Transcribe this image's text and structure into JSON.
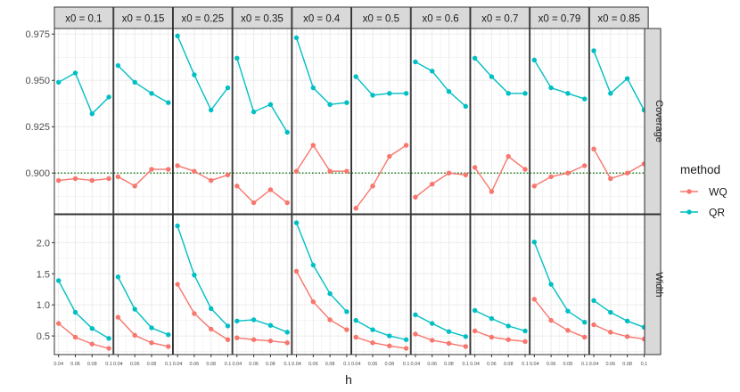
{
  "chart_data": {
    "type": "line",
    "facets": [
      "x0 = 0.1",
      "x0 = 0.15",
      "x0 = 0.25",
      "x0 = 0.35",
      "x0 = 0.4",
      "x0 = 0.5",
      "x0 = 0.6",
      "x0 = 0.7",
      "x0 = 0.79",
      "x0 = 0.85"
    ],
    "rows": [
      "Coverage",
      "Width"
    ],
    "x": [
      0.04,
      0.06,
      0.08,
      0.1
    ],
    "x_tick_labels": [
      "0.04",
      "0.06",
      "0.08",
      "0.1"
    ],
    "xlabel": "h",
    "xlim": [
      0.035,
      0.105
    ],
    "coverage_ylim": [
      0.878,
      0.978
    ],
    "coverage_ticks": [
      0.9,
      0.925,
      0.95,
      0.975
    ],
    "coverage_tick_labels": [
      "0.900",
      "0.925",
      "0.950",
      "0.975"
    ],
    "width_ylim": [
      0.2,
      2.45
    ],
    "width_ticks": [
      0.5,
      1.0,
      1.5,
      2.0
    ],
    "width_tick_labels": [
      "0.5",
      "1.0",
      "1.5",
      "2.0"
    ],
    "reference_line": {
      "row": "Coverage",
      "value": 0.9,
      "color": "#1a7a1a",
      "style": "dotted"
    },
    "legend": {
      "title": "method",
      "position": "right",
      "entries": [
        "WQ",
        "QR"
      ]
    },
    "series": [
      {
        "name": "WQ",
        "color": "#F8766D",
        "coverage": [
          [
            0.896,
            0.897,
            0.896,
            0.897
          ],
          [
            0.898,
            0.893,
            0.902,
            0.902
          ],
          [
            0.904,
            0.901,
            0.896,
            0.899
          ],
          [
            0.893,
            0.884,
            0.891,
            0.884
          ],
          [
            0.901,
            0.915,
            0.901,
            0.901
          ],
          [
            0.881,
            0.893,
            0.909,
            0.915
          ],
          [
            0.887,
            0.894,
            0.9,
            0.899
          ],
          [
            0.903,
            0.89,
            0.909,
            0.902
          ],
          [
            0.893,
            0.898,
            0.9,
            0.904
          ],
          [
            0.913,
            0.897,
            0.9,
            0.905
          ]
        ],
        "width": [
          [
            0.7,
            0.48,
            0.37,
            0.3
          ],
          [
            0.8,
            0.51,
            0.39,
            0.33
          ],
          [
            1.33,
            0.86,
            0.61,
            0.44
          ],
          [
            0.47,
            0.44,
            0.42,
            0.39
          ],
          [
            1.54,
            1.05,
            0.76,
            0.6
          ],
          [
            0.48,
            0.39,
            0.34,
            0.3
          ],
          [
            0.53,
            0.43,
            0.38,
            0.33
          ],
          [
            0.58,
            0.48,
            0.44,
            0.41
          ],
          [
            1.09,
            0.75,
            0.59,
            0.48
          ],
          [
            0.68,
            0.56,
            0.49,
            0.45
          ]
        ]
      },
      {
        "name": "QR",
        "color": "#00BFC4",
        "coverage": [
          [
            0.949,
            0.954,
            0.932,
            0.941
          ],
          [
            0.958,
            0.949,
            0.943,
            0.938
          ],
          [
            0.974,
            0.953,
            0.934,
            0.946
          ],
          [
            0.962,
            0.933,
            0.937,
            0.922
          ],
          [
            0.973,
            0.946,
            0.937,
            0.938
          ],
          [
            0.952,
            0.942,
            0.943,
            0.943
          ],
          [
            0.96,
            0.955,
            0.944,
            0.936
          ],
          [
            0.962,
            0.952,
            0.943,
            0.943
          ],
          [
            0.961,
            0.946,
            0.943,
            0.94
          ],
          [
            0.966,
            0.943,
            0.951,
            0.934
          ]
        ],
        "width": [
          [
            1.39,
            0.88,
            0.62,
            0.46
          ],
          [
            1.45,
            0.93,
            0.63,
            0.52
          ],
          [
            2.27,
            1.48,
            0.94,
            0.66
          ],
          [
            0.74,
            0.76,
            0.67,
            0.56
          ],
          [
            2.32,
            1.64,
            1.18,
            0.89
          ],
          [
            0.75,
            0.6,
            0.5,
            0.44
          ],
          [
            0.84,
            0.7,
            0.57,
            0.49
          ],
          [
            0.91,
            0.78,
            0.66,
            0.58
          ],
          [
            2.01,
            1.33,
            0.9,
            0.72
          ],
          [
            1.07,
            0.88,
            0.74,
            0.64
          ]
        ]
      }
    ]
  }
}
